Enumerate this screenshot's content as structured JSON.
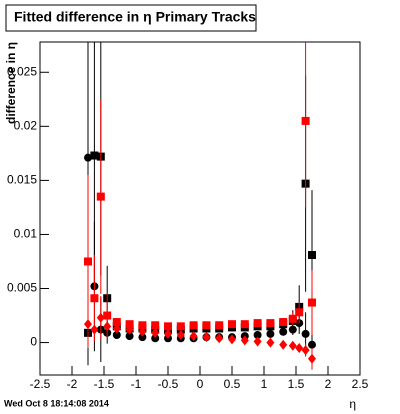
{
  "chart_data": {
    "type": "scatter",
    "title": "Fitted difference in η  Primary Tracks",
    "ylabel": "difference in η",
    "xlabel": "η",
    "timestamp": "Wed Oct  8 18:14:08 2014",
    "x": [
      -1.75,
      -1.65,
      -1.55,
      -1.45,
      -1.3,
      -1.1,
      -0.9,
      -0.7,
      -0.5,
      -0.3,
      -0.1,
      0.1,
      0.3,
      0.5,
      0.7,
      0.9,
      1.1,
      1.3,
      1.45,
      1.55,
      1.65,
      1.75
    ],
    "series": [
      {
        "color": "#000000",
        "marker": "circle",
        "values": [
          0.0171,
          0.0052,
          0.0012,
          0.0009,
          0.0007,
          0.0006,
          0.0005,
          0.0004,
          0.0004,
          0.0004,
          0.0004,
          0.0005,
          0.0005,
          0.0005,
          0.0006,
          0.0007,
          0.0008,
          0.001,
          0.0012,
          0.0018,
          0.0008,
          -0.0002
        ],
        "errors": [
          0.011,
          0.006,
          0.003,
          0.001,
          0.0003,
          0.0002,
          0.0002,
          0.0002,
          0.0002,
          0.0002,
          0.0002,
          0.0002,
          0.0002,
          0.0002,
          0.0002,
          0.0002,
          0.0002,
          0.0003,
          0.0005,
          0.001,
          0.002,
          0.002
        ]
      },
      {
        "color": "#000000",
        "marker": "square",
        "values": [
          0.0009,
          0.0173,
          0.0172,
          0.0041,
          0.0015,
          0.0013,
          0.0013,
          0.0012,
          0.0012,
          0.0012,
          0.0013,
          0.0013,
          0.0013,
          0.0014,
          0.0014,
          0.0015,
          0.0015,
          0.0017,
          0.002,
          0.0033,
          0.0147,
          0.0081
        ],
        "errors": [
          0.003,
          0.012,
          0.011,
          0.003,
          0.0004,
          0.0002,
          0.0002,
          0.0002,
          0.0002,
          0.0002,
          0.0002,
          0.0002,
          0.0002,
          0.0002,
          0.0002,
          0.0002,
          0.0002,
          0.0003,
          0.001,
          0.002,
          0.01,
          0.006
        ]
      },
      {
        "color": "#ff0000",
        "marker": "square",
        "values": [
          0.0075,
          0.0041,
          0.0135,
          0.0025,
          0.0019,
          0.0017,
          0.0016,
          0.0016,
          0.0015,
          0.0015,
          0.0016,
          0.0016,
          0.0016,
          0.0017,
          0.0017,
          0.0018,
          0.0018,
          0.0019,
          0.0022,
          0.0028,
          0.0205,
          0.0037
        ],
        "errors": [
          0.008,
          0.004,
          0.009,
          0.002,
          0.0003,
          0.0002,
          0.0002,
          0.0002,
          0.0002,
          0.0002,
          0.0002,
          0.0002,
          0.0002,
          0.0002,
          0.0002,
          0.0002,
          0.0002,
          0.0003,
          0.0006,
          0.001,
          0.008,
          0.003
        ]
      },
      {
        "color": "#ff0000",
        "marker": "diamond",
        "values": [
          0.0017,
          0.0012,
          0.0023,
          0.0015,
          0.0013,
          0.0012,
          0.001,
          0.0009,
          0.0008,
          0.0007,
          0.0006,
          0.0005,
          0.0004,
          0.0003,
          0.0002,
          0.0001,
          0,
          -0.0002,
          -0.0003,
          -0.0005,
          -0.0007,
          -0.0015
        ],
        "errors": [
          0.002,
          0.001,
          0.002,
          0.0005,
          0.0002,
          0.0002,
          0.0002,
          0.0002,
          0.0002,
          0.0002,
          0.0002,
          0.0002,
          0.0002,
          0.0002,
          0.0002,
          0.0002,
          0.0002,
          0.0002,
          0.0003,
          0.0004,
          0.0006,
          0.001
        ]
      }
    ],
    "xlim": [
      -2.5,
      2.5
    ],
    "ylim": [
      -0.003,
      0.0278
    ],
    "xticks": [
      -2.5,
      -2,
      -1.5,
      -1,
      -0.5,
      0,
      0.5,
      1,
      1.5,
      2,
      2.5
    ],
    "yticks": [
      0,
      0.005,
      0.01,
      0.015,
      0.02,
      0.025
    ]
  }
}
